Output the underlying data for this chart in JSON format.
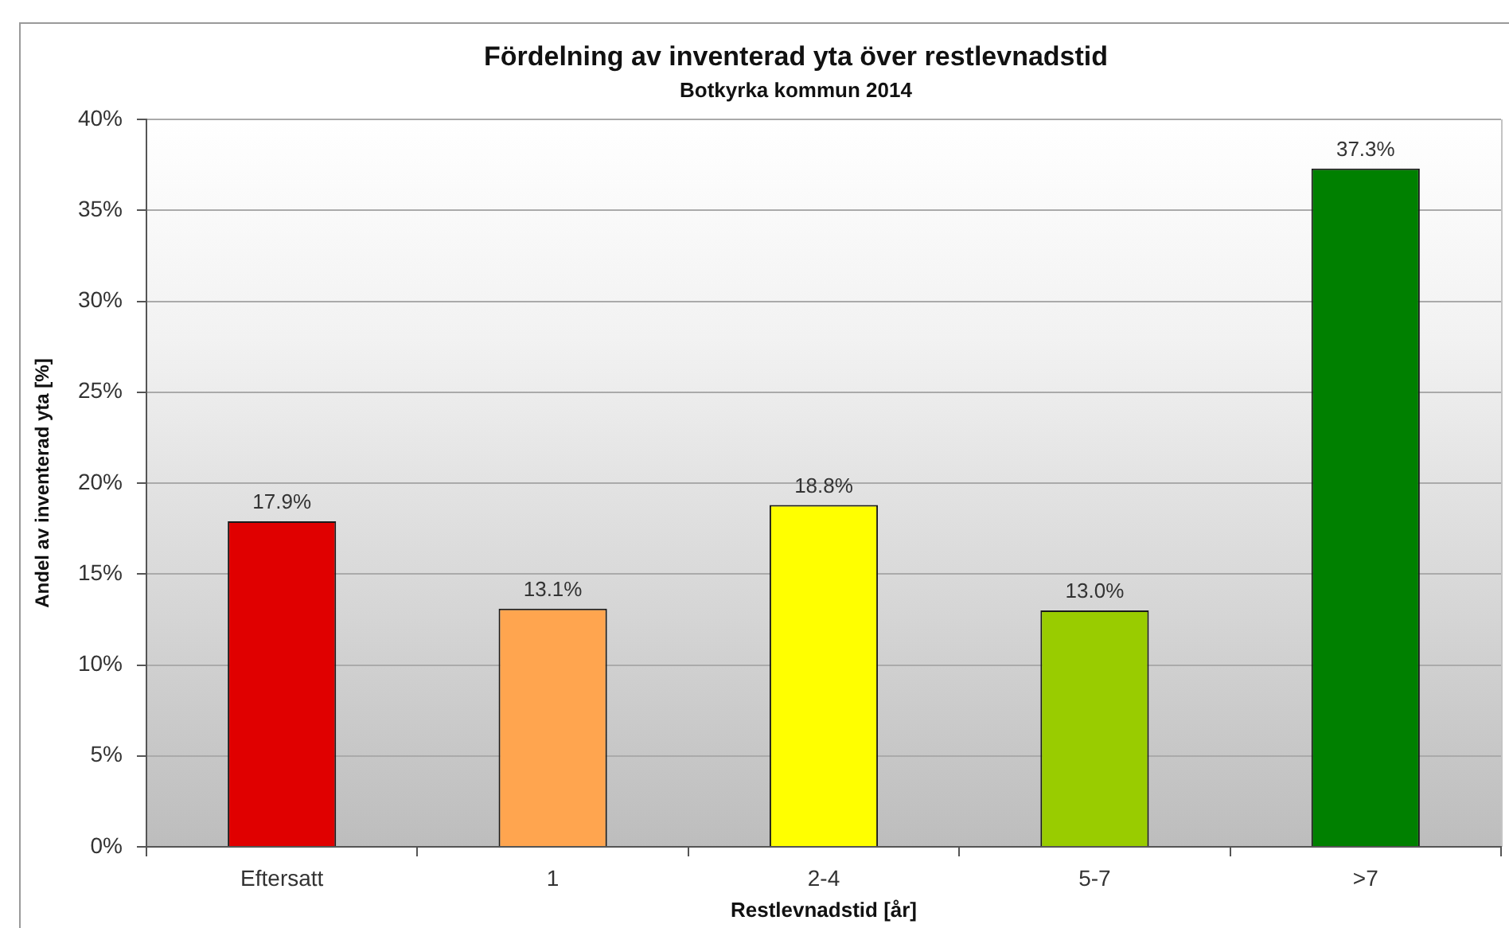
{
  "chart_data": {
    "type": "bar",
    "title": "Fördelning av inventerad yta över restlevnadstid",
    "subtitle": "Botkyrka kommun 2014",
    "xlabel": "Restlevnadstid [år]",
    "ylabel": "Andel av inventerad yta [%]",
    "categories": [
      "Eftersatt",
      "1",
      "2-4",
      "5-7",
      ">7"
    ],
    "values": [
      17.9,
      13.1,
      18.8,
      13.0,
      37.3
    ],
    "colors": [
      "#e00000",
      "#ffa54f",
      "#ffff00",
      "#99cc00",
      "#008000"
    ],
    "value_labels": [
      "17.9%",
      "13.1%",
      "18.8%",
      "13.0%",
      "37.3%"
    ],
    "ylim": [
      0,
      40
    ],
    "yticks": [
      {
        "value": 0,
        "label": "0%"
      },
      {
        "value": 5,
        "label": "5%"
      },
      {
        "value": 10,
        "label": "10%"
      },
      {
        "value": 15,
        "label": "15%"
      },
      {
        "value": 20,
        "label": "20%"
      },
      {
        "value": 25,
        "label": "25%"
      },
      {
        "value": 30,
        "label": "30%"
      },
      {
        "value": 35,
        "label": "35%"
      },
      {
        "value": 40,
        "label": "40%"
      }
    ],
    "grid": "y",
    "legend": false
  }
}
